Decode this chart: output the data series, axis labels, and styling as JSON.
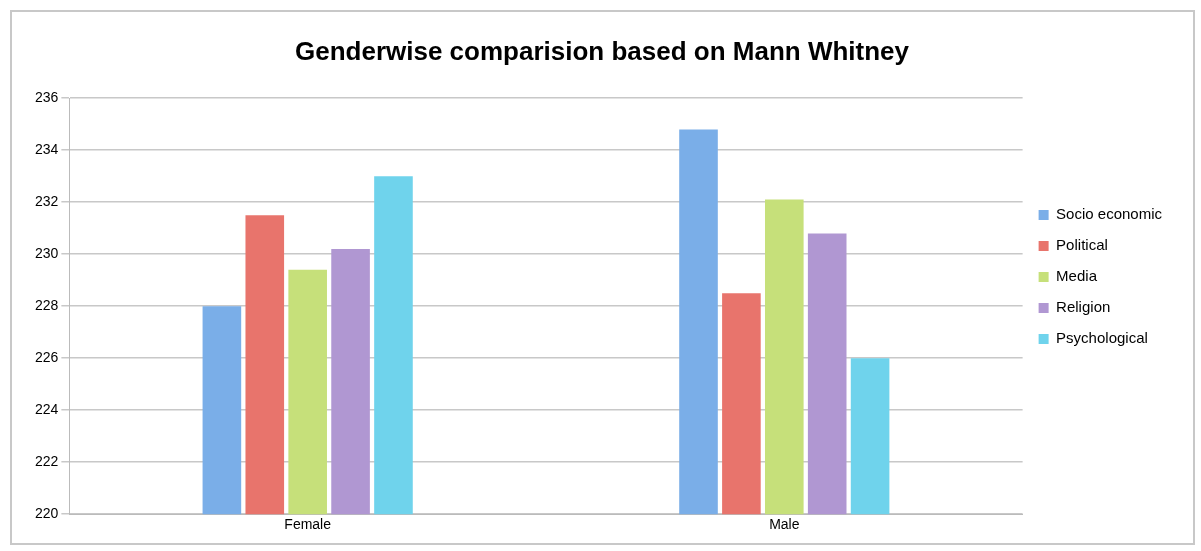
{
  "chart_data": {
    "type": "bar",
    "title": "Genderwise comparision based on Mann Whitney",
    "categories": [
      "Female",
      "Male"
    ],
    "series": [
      {
        "name": "Socio economic",
        "color": "#7aaee8",
        "values": [
          228.0,
          234.8
        ]
      },
      {
        "name": "Political",
        "color": "#e8746c",
        "values": [
          231.5,
          228.5
        ]
      },
      {
        "name": "Media",
        "color": "#c6e07a",
        "values": [
          229.4,
          232.1
        ]
      },
      {
        "name": "Religion",
        "color": "#b097d2",
        "values": [
          230.2,
          230.8
        ]
      },
      {
        "name": "Psychological",
        "color": "#6fd3ec",
        "values": [
          233.0,
          226.0
        ]
      }
    ],
    "ylim": [
      220,
      236
    ],
    "yticks": [
      220,
      222,
      224,
      226,
      228,
      230,
      232,
      234,
      236
    ],
    "grid": "y",
    "legend": "right"
  }
}
